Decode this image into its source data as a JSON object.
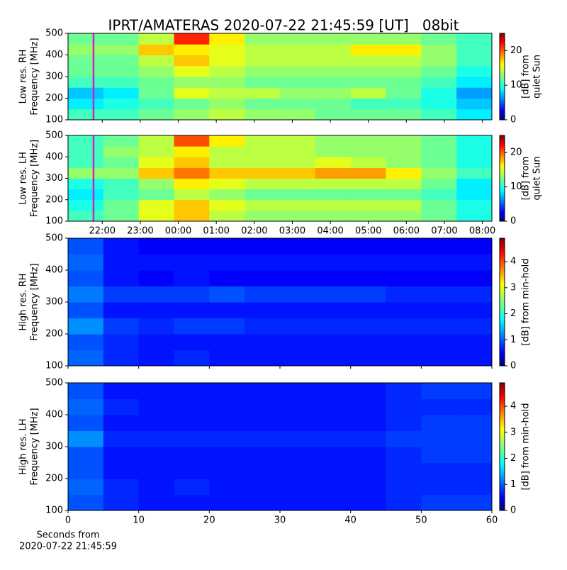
{
  "chart_data": [
    {
      "type": "heatmap",
      "title": "IPRT/AMATERAS 2020-07-22 21:45:59 [UT]   08bit",
      "ylabel": [
        "Low res. RH",
        "Frequency [MHz]"
      ],
      "xlim": [
        21.1,
        32.25
      ],
      "ylim": [
        100,
        500
      ],
      "xticks": [
        22,
        23,
        24,
        25,
        26,
        27,
        28,
        29,
        30,
        31,
        32
      ],
      "show_xtick_labels": false,
      "yticks": [
        100,
        200,
        300,
        400,
        500
      ],
      "clim": [
        0,
        25
      ],
      "cticks": [
        0,
        10,
        20
      ],
      "clabel": [
        "[dB] from",
        "quiet Sun"
      ],
      "colormap": "jet",
      "vline": {
        "x": 21.77,
        "color": "#d020c8"
      },
      "z": [
        [
          11,
          11,
          12,
          13,
          14,
          13,
          13,
          12,
          12,
          12,
          11,
          9
        ],
        [
          9,
          10,
          11,
          12,
          13,
          12,
          12,
          12,
          11,
          11,
          10,
          8
        ],
        [
          8,
          9,
          12,
          15,
          14,
          14,
          13,
          13,
          14,
          12,
          10,
          7
        ],
        [
          11,
          11,
          12,
          13,
          13,
          12,
          12,
          12,
          12,
          12,
          11,
          9
        ],
        [
          12,
          12,
          13,
          15,
          14,
          13,
          13,
          13,
          13,
          13,
          12,
          10
        ],
        [
          12,
          12,
          14,
          17,
          15,
          14,
          14,
          14,
          14,
          14,
          13,
          11
        ],
        [
          13,
          13,
          17,
          16,
          15,
          14,
          14,
          14,
          16,
          16,
          13,
          11
        ],
        [
          12,
          12,
          14,
          21,
          16,
          13,
          13,
          13,
          13,
          13,
          12,
          11
        ]
      ]
    },
    {
      "type": "heatmap",
      "ylabel": [
        "Low res. LH",
        "Frequency [MHz]"
      ],
      "xlim": [
        21.1,
        32.25
      ],
      "ylim": [
        100,
        500
      ],
      "xticks": [
        {
          "value": 22,
          "label": "22:00"
        },
        {
          "value": 23,
          "label": "23:00"
        },
        {
          "value": 24,
          "label": "00:00"
        },
        {
          "value": 25,
          "label": "01:00"
        },
        {
          "value": 26,
          "label": "02:00"
        },
        {
          "value": 27,
          "label": "03:00"
        },
        {
          "value": 28,
          "label": "04:00"
        },
        {
          "value": 29,
          "label": "05:00"
        },
        {
          "value": 30,
          "label": "06:00"
        },
        {
          "value": 31,
          "label": "07:00"
        },
        {
          "value": 32,
          "label": "08:00"
        }
      ],
      "yticks": [
        100,
        200,
        300,
        400,
        500
      ],
      "clim": [
        0,
        25
      ],
      "cticks": [
        0,
        10,
        20
      ],
      "clabel": [
        "[dB] from",
        "quiet Sun"
      ],
      "colormap": "jet",
      "vline": {
        "x": 21.77,
        "color": "#d020c8"
      },
      "z": [
        [
          11,
          12,
          15,
          17,
          14,
          13,
          13,
          13,
          13,
          13,
          12,
          10
        ],
        [
          10,
          12,
          15,
          17,
          15,
          14,
          14,
          14,
          14,
          14,
          12,
          10
        ],
        [
          9,
          11,
          12,
          14,
          13,
          12,
          12,
          12,
          12,
          12,
          11,
          9
        ],
        [
          10,
          11,
          13,
          16,
          15,
          14,
          14,
          14,
          14,
          14,
          12,
          9
        ],
        [
          13,
          13,
          17,
          19,
          17,
          17,
          17,
          18,
          18,
          16,
          13,
          11
        ],
        [
          11,
          12,
          15,
          17,
          14,
          14,
          14,
          15,
          14,
          13,
          12,
          10
        ],
        [
          11,
          13,
          14,
          16,
          14,
          14,
          14,
          13,
          13,
          13,
          12,
          10
        ],
        [
          11,
          12,
          14,
          20,
          16,
          14,
          14,
          13,
          13,
          13,
          12,
          10
        ]
      ]
    },
    {
      "type": "heatmap",
      "ylabel": [
        "High res. RH",
        "Frequency [MHz]"
      ],
      "xlim": [
        0,
        60
      ],
      "ylim": [
        100,
        500
      ],
      "xticks": [
        0,
        10,
        20,
        30,
        40,
        50,
        60
      ],
      "show_xtick_labels": false,
      "yticks": [
        100,
        200,
        300,
        400,
        500
      ],
      "clim": [
        0,
        4.9
      ],
      "cticks": [
        0,
        1,
        2,
        3,
        4
      ],
      "clabel": [
        "[dB] from min-hold"
      ],
      "colormap": "jet",
      "z": [
        [
          1.1,
          0.8,
          0.7,
          0.8,
          0.7,
          0.7,
          0.7,
          0.7,
          0.7,
          0.7,
          0.7,
          0.7
        ],
        [
          1.0,
          0.8,
          0.7,
          0.7,
          0.7,
          0.7,
          0.7,
          0.7,
          0.7,
          0.7,
          0.7,
          0.7
        ],
        [
          1.3,
          0.9,
          0.8,
          0.9,
          0.9,
          0.8,
          0.8,
          0.8,
          0.8,
          0.8,
          0.8,
          0.8
        ],
        [
          1.0,
          0.7,
          0.7,
          0.7,
          0.7,
          0.7,
          0.7,
          0.7,
          0.7,
          0.7,
          0.7,
          0.7
        ],
        [
          1.2,
          0.9,
          0.9,
          0.9,
          1.0,
          0.9,
          0.9,
          0.9,
          0.9,
          0.8,
          0.8,
          0.8
        ],
        [
          1.0,
          0.7,
          0.6,
          0.7,
          0.6,
          0.6,
          0.6,
          0.6,
          0.6,
          0.6,
          0.6,
          0.6
        ],
        [
          1.1,
          0.7,
          0.7,
          0.7,
          0.7,
          0.7,
          0.7,
          0.7,
          0.7,
          0.7,
          0.7,
          0.7
        ],
        [
          1.0,
          0.7,
          0.6,
          0.6,
          0.6,
          0.6,
          0.6,
          0.6,
          0.6,
          0.6,
          0.6,
          0.6
        ]
      ]
    },
    {
      "type": "heatmap",
      "ylabel": [
        "High res. LH",
        "Frequency [MHz]"
      ],
      "xlabel": [
        "Seconds from",
        "2020-07-22 21:45:59"
      ],
      "xlim": [
        0,
        60
      ],
      "ylim": [
        100,
        500
      ],
      "xticks": [
        0,
        10,
        20,
        30,
        40,
        50,
        60
      ],
      "yticks": [
        100,
        200,
        300,
        400,
        500
      ],
      "clim": [
        0,
        4.9
      ],
      "cticks": [
        0,
        1,
        2,
        3,
        4
      ],
      "clabel": [
        "[dB] from min-hold"
      ],
      "colormap": "jet",
      "z": [
        [
          1.0,
          0.8,
          0.7,
          0.7,
          0.7,
          0.7,
          0.7,
          0.7,
          0.7,
          0.8,
          0.9,
          0.9
        ],
        [
          1.1,
          0.8,
          0.7,
          0.8,
          0.7,
          0.7,
          0.7,
          0.7,
          0.7,
          0.8,
          0.8,
          0.8
        ],
        [
          1.0,
          0.7,
          0.7,
          0.7,
          0.7,
          0.7,
          0.7,
          0.7,
          0.7,
          0.8,
          0.8,
          0.8
        ],
        [
          1.0,
          0.7,
          0.7,
          0.7,
          0.7,
          0.7,
          0.7,
          0.7,
          0.7,
          0.8,
          0.9,
          0.9
        ],
        [
          1.3,
          0.8,
          0.8,
          0.8,
          0.8,
          0.8,
          0.8,
          0.8,
          0.8,
          0.9,
          0.9,
          0.9
        ],
        [
          1.0,
          0.7,
          0.7,
          0.7,
          0.7,
          0.7,
          0.7,
          0.7,
          0.7,
          0.8,
          0.9,
          0.9
        ],
        [
          1.1,
          0.8,
          0.7,
          0.7,
          0.7,
          0.7,
          0.7,
          0.7,
          0.7,
          0.8,
          0.8,
          0.8
        ],
        [
          1.0,
          0.7,
          0.7,
          0.7,
          0.7,
          0.7,
          0.7,
          0.7,
          0.7,
          0.8,
          0.9,
          0.9
        ]
      ]
    }
  ]
}
